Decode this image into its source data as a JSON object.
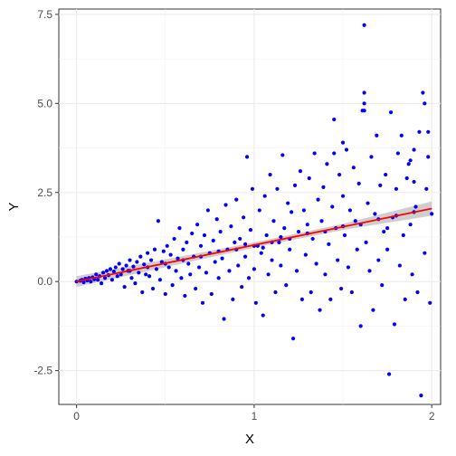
{
  "chart_data": {
    "type": "scatter",
    "title": "",
    "xlabel": "X",
    "ylabel": "Y",
    "xlim": [
      -0.1,
      2.05
    ],
    "ylim": [
      -3.45,
      7.65
    ],
    "x_ticks": [
      0,
      1,
      2
    ],
    "x_tick_labels": [
      "0",
      "1",
      "2"
    ],
    "y_ticks": [
      -2.5,
      0,
      2.5,
      5,
      7.5
    ],
    "y_tick_labels": [
      "-2.5",
      "0.0",
      "2.5",
      "5.0",
      "7.5"
    ],
    "grid": true,
    "legend": "none",
    "point_color": "#0000ff",
    "fit_color": "#ff0000",
    "band_color": "#bdbdbd",
    "fit_line": {
      "x": [
        0,
        2
      ],
      "y": [
        0.0,
        2.05
      ]
    },
    "confidence_band": {
      "x": [
        0,
        0.5,
        1.0,
        1.5,
        2.0
      ],
      "lower": [
        -0.15,
        0.4,
        0.95,
        1.45,
        1.85
      ],
      "upper": [
        0.15,
        0.62,
        1.1,
        1.62,
        2.25
      ]
    },
    "series": [
      {
        "points": [
          [
            0.0,
            0.0
          ],
          [
            0.02,
            0.02
          ],
          [
            0.03,
            0.05
          ],
          [
            0.04,
            -0.02
          ],
          [
            0.05,
            0.08
          ],
          [
            0.06,
            0.03
          ],
          [
            0.07,
            0.1
          ],
          [
            0.08,
            0.0
          ],
          [
            0.09,
            0.12
          ],
          [
            0.1,
            0.06
          ],
          [
            0.11,
            0.2
          ],
          [
            0.12,
            0.05
          ],
          [
            0.13,
            0.15
          ],
          [
            0.14,
            -0.05
          ],
          [
            0.15,
            0.25
          ],
          [
            0.16,
            0.1
          ],
          [
            0.17,
            0.3
          ],
          [
            0.18,
            0.18
          ],
          [
            0.19,
            0.35
          ],
          [
            0.2,
            0.05
          ],
          [
            0.21,
            0.28
          ],
          [
            0.22,
            0.4
          ],
          [
            0.23,
            0.15
          ],
          [
            0.24,
            0.5
          ],
          [
            0.25,
            0.2
          ],
          [
            0.26,
            0.35
          ],
          [
            0.27,
            -0.15
          ],
          [
            0.28,
            0.45
          ],
          [
            0.29,
            0.3
          ],
          [
            0.3,
            0.6
          ],
          [
            0.31,
            0.1
          ],
          [
            0.32,
            0.42
          ],
          [
            0.33,
            -0.05
          ],
          [
            0.34,
            0.55
          ],
          [
            0.35,
            0.25
          ],
          [
            0.36,
            0.7
          ],
          [
            0.37,
            -0.3
          ],
          [
            0.38,
            0.48
          ],
          [
            0.39,
            0.2
          ],
          [
            0.4,
            0.8
          ],
          [
            0.41,
            0.15
          ],
          [
            0.42,
            0.6
          ],
          [
            0.43,
            -0.2
          ],
          [
            0.44,
            0.9
          ],
          [
            0.45,
            0.35
          ],
          [
            0.46,
            1.7
          ],
          [
            0.47,
            0.05
          ],
          [
            0.48,
            0.55
          ],
          [
            0.49,
            0.85
          ],
          [
            0.5,
            -0.35
          ],
          [
            0.51,
            1.0
          ],
          [
            0.52,
            0.4
          ],
          [
            0.53,
            0.75
          ],
          [
            0.54,
            -0.1
          ],
          [
            0.55,
            1.2
          ],
          [
            0.56,
            0.3
          ],
          [
            0.57,
            0.65
          ],
          [
            0.58,
            1.5
          ],
          [
            0.59,
            0.1
          ],
          [
            0.6,
            0.9
          ],
          [
            0.61,
            -0.4
          ],
          [
            0.62,
            1.1
          ],
          [
            0.63,
            0.5
          ],
          [
            0.64,
            0.2
          ],
          [
            0.65,
            1.35
          ],
          [
            0.66,
            0.7
          ],
          [
            0.67,
            -0.2
          ],
          [
            0.68,
            1.6
          ],
          [
            0.69,
            0.4
          ],
          [
            0.7,
            1.0
          ],
          [
            0.71,
            -0.6
          ],
          [
            0.72,
            1.3
          ],
          [
            0.73,
            0.25
          ],
          [
            0.74,
            2.0
          ],
          [
            0.75,
            0.8
          ],
          [
            0.76,
            -0.35
          ],
          [
            0.77,
            1.15
          ],
          [
            0.78,
            0.55
          ],
          [
            0.79,
            1.75
          ],
          [
            0.8,
            0.1
          ],
          [
            0.81,
            1.4
          ],
          [
            0.82,
            0.65
          ],
          [
            0.83,
            -1.05
          ],
          [
            0.84,
            2.15
          ],
          [
            0.85,
            0.9
          ],
          [
            0.86,
            0.3
          ],
          [
            0.87,
            1.55
          ],
          [
            0.88,
            -0.5
          ],
          [
            0.89,
            1.1
          ],
          [
            0.9,
            2.3
          ],
          [
            0.91,
            0.45
          ],
          [
            0.92,
            1.2
          ],
          [
            0.93,
            -0.15
          ],
          [
            0.94,
            1.8
          ],
          [
            0.95,
            0.7
          ],
          [
            0.96,
            3.5
          ],
          [
            0.97,
            0.1
          ],
          [
            0.98,
            1.45
          ],
          [
            0.99,
            2.6
          ],
          [
            1.0,
            0.35
          ],
          [
            1.01,
            -0.6
          ],
          [
            1.02,
            1.0
          ],
          [
            1.03,
            2.0
          ],
          [
            1.04,
            0.8
          ],
          [
            1.05,
            -0.95
          ],
          [
            1.06,
            2.4
          ],
          [
            1.07,
            1.3
          ],
          [
            1.08,
            0.2
          ],
          [
            1.09,
            3.0
          ],
          [
            1.1,
            0.6
          ],
          [
            1.11,
            1.7
          ],
          [
            1.12,
            -0.3
          ],
          [
            1.13,
            2.6
          ],
          [
            1.14,
            1.1
          ],
          [
            1.15,
            0.45
          ],
          [
            1.16,
            3.55
          ],
          [
            1.17,
            1.5
          ],
          [
            1.18,
            -0.1
          ],
          [
            1.19,
            2.2
          ],
          [
            1.2,
            0.9
          ],
          [
            1.21,
            1.95
          ],
          [
            1.22,
            -1.6
          ],
          [
            1.23,
            2.7
          ],
          [
            1.24,
            0.3
          ],
          [
            1.25,
            1.4
          ],
          [
            1.26,
            3.1
          ],
          [
            1.27,
            -0.5
          ],
          [
            1.28,
            2.0
          ],
          [
            1.29,
            0.75
          ],
          [
            1.3,
            1.6
          ],
          [
            1.31,
            2.9
          ],
          [
            1.32,
            -0.3
          ],
          [
            1.33,
            1.2
          ],
          [
            1.34,
            3.6
          ],
          [
            1.35,
            0.5
          ],
          [
            1.36,
            2.3
          ],
          [
            1.37,
            -0.8
          ],
          [
            1.38,
            1.7
          ],
          [
            1.39,
            2.65
          ],
          [
            1.4,
            0.2
          ],
          [
            1.41,
            3.3
          ],
          [
            1.42,
            1.05
          ],
          [
            1.43,
            -0.5
          ],
          [
            1.44,
            2.1
          ],
          [
            1.45,
            4.55
          ],
          [
            1.46,
            1.5
          ],
          [
            1.47,
            0.6
          ],
          [
            1.48,
            3.0
          ],
          [
            1.49,
            -0.2
          ],
          [
            1.5,
            2.4
          ],
          [
            1.51,
            1.3
          ],
          [
            1.52,
            3.7
          ],
          [
            1.53,
            0.4
          ],
          [
            1.54,
            2.0
          ],
          [
            1.55,
            -0.3
          ],
          [
            1.56,
            3.2
          ],
          [
            1.57,
            1.7
          ],
          [
            1.58,
            0.9
          ],
          [
            1.59,
            2.75
          ],
          [
            1.6,
            -1.25
          ],
          [
            1.61,
            4.8
          ],
          [
            1.62,
            7.2
          ],
          [
            1.63,
            1.1
          ],
          [
            1.64,
            2.2
          ],
          [
            1.65,
            0.3
          ],
          [
            1.66,
            3.5
          ],
          [
            1.67,
            -0.8
          ],
          [
            1.68,
            1.9
          ],
          [
            1.69,
            4.1
          ],
          [
            1.7,
            0.6
          ],
          [
            1.71,
            2.7
          ],
          [
            1.72,
            -0.1
          ],
          [
            1.73,
            1.4
          ],
          [
            1.74,
            3.0
          ],
          [
            1.75,
            0.9
          ],
          [
            1.76,
            -2.6
          ],
          [
            1.77,
            4.75
          ],
          [
            1.78,
            1.8
          ],
          [
            1.79,
            -1.2
          ],
          [
            1.8,
            2.6
          ],
          [
            1.81,
            3.6
          ],
          [
            1.82,
            0.45
          ],
          [
            1.83,
            4.1
          ],
          [
            1.84,
            1.3
          ],
          [
            1.85,
            -0.5
          ],
          [
            1.86,
            2.9
          ],
          [
            1.87,
            3.3
          ],
          [
            1.88,
            1.6
          ],
          [
            1.89,
            0.2
          ],
          [
            1.9,
            3.7
          ],
          [
            1.91,
            2.1
          ],
          [
            1.92,
            -0.3
          ],
          [
            1.93,
            4.2
          ],
          [
            1.94,
            -3.2
          ],
          [
            1.95,
            5.3
          ],
          [
            1.96,
            0.8
          ],
          [
            1.97,
            2.6
          ],
          [
            1.98,
            3.5
          ],
          [
            1.99,
            -0.6
          ],
          [
            2.0,
            1.9
          ],
          [
            1.96,
            5.0
          ],
          [
            1.98,
            4.2
          ],
          [
            1.62,
            5.3
          ],
          [
            1.62,
            5.0
          ],
          [
            1.62,
            4.8
          ],
          [
            1.5,
            3.9
          ],
          [
            1.45,
            3.6
          ],
          [
            1.88,
            3.4
          ],
          [
            1.9,
            2.8
          ],
          [
            1.75,
            1.5
          ],
          [
            1.2,
            1.2
          ],
          [
            1.1,
            1.1
          ],
          [
            1.0,
            1.0
          ],
          [
            0.9,
            0.9
          ],
          [
            0.8,
            0.85
          ],
          [
            0.7,
            0.7
          ],
          [
            0.6,
            0.6
          ],
          [
            0.5,
            0.5
          ],
          [
            0.4,
            0.4
          ],
          [
            0.3,
            0.3
          ],
          [
            1.3,
            1.35
          ],
          [
            1.4,
            1.4
          ],
          [
            1.5,
            1.55
          ],
          [
            1.6,
            1.6
          ],
          [
            1.7,
            1.75
          ],
          [
            1.8,
            1.85
          ],
          [
            1.9,
            1.95
          ],
          [
            1.15,
            1.25
          ],
          [
            1.05,
            0.95
          ],
          [
            0.95,
            1.05
          ]
        ]
      }
    ]
  }
}
